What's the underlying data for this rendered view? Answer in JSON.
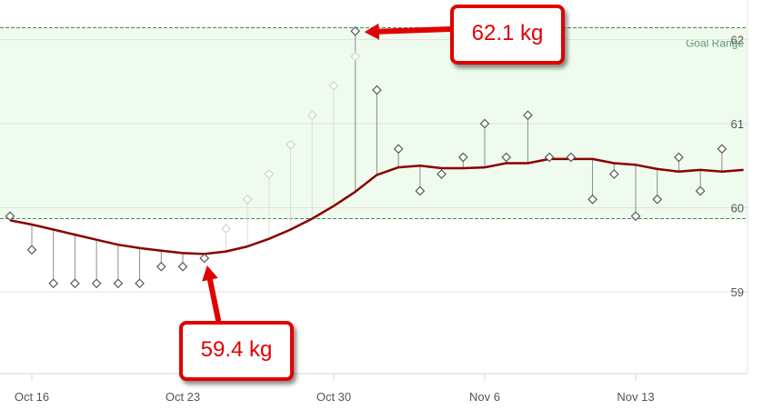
{
  "chart_data": {
    "type": "line",
    "goal_range": {
      "label": "Goal Range",
      "min": 59.87,
      "max": 62.14,
      "color": "#5a9a6e"
    },
    "y_ticks": [
      59,
      60,
      61,
      62
    ],
    "x_ticks": [
      {
        "label": "Oct 16",
        "day": 16
      },
      {
        "label": "Oct 23",
        "day": 23
      },
      {
        "label": "Oct 30",
        "day": 30
      },
      {
        "label": "Nov 6",
        "day": 37
      },
      {
        "label": "Nov 13",
        "day": 44
      }
    ],
    "measurements": [
      {
        "day": 16,
        "value": 59.5
      },
      {
        "day": 17,
        "value": 59.1
      },
      {
        "day": 18,
        "value": 59.1
      },
      {
        "day": 19,
        "value": 59.1
      },
      {
        "day": 20,
        "value": 59.1
      },
      {
        "day": 21,
        "value": 59.1
      },
      {
        "day": 22,
        "value": 59.3
      },
      {
        "day": 23,
        "value": 59.3
      },
      {
        "day": 24,
        "value": 59.4
      },
      {
        "day": 31,
        "value": 62.1
      },
      {
        "day": 32,
        "value": 61.4
      },
      {
        "day": 33,
        "value": 60.7
      },
      {
        "day": 34,
        "value": 60.2
      },
      {
        "day": 35,
        "value": 60.4
      },
      {
        "day": 36,
        "value": 60.6
      },
      {
        "day": 37,
        "value": 61.0
      },
      {
        "day": 38,
        "value": 60.6
      },
      {
        "day": 39,
        "value": 61.1
      },
      {
        "day": 40,
        "value": 60.6
      },
      {
        "day": 41,
        "value": 60.6
      },
      {
        "day": 42,
        "value": 60.1
      },
      {
        "day": 43,
        "value": 60.4
      },
      {
        "day": 44,
        "value": 59.9
      },
      {
        "day": 45,
        "value": 60.1
      },
      {
        "day": 46,
        "value": 60.6
      },
      {
        "day": 47,
        "value": 60.2
      },
      {
        "day": 48,
        "value": 60.7
      }
    ],
    "estimated_measurements": [
      {
        "day": 25,
        "value": 59.75
      },
      {
        "day": 26,
        "value": 60.1
      },
      {
        "day": 27,
        "value": 60.4
      },
      {
        "day": 28,
        "value": 60.75
      },
      {
        "day": 29,
        "value": 61.1
      },
      {
        "day": 30,
        "value": 61.45
      },
      {
        "day": 31,
        "value": 61.8
      }
    ],
    "trend": [
      {
        "day": 15,
        "value": 59.85
      },
      {
        "day": 16,
        "value": 59.8
      },
      {
        "day": 17,
        "value": 59.74
      },
      {
        "day": 18,
        "value": 59.68
      },
      {
        "day": 19,
        "value": 59.62
      },
      {
        "day": 20,
        "value": 59.56
      },
      {
        "day": 21,
        "value": 59.52
      },
      {
        "day": 22,
        "value": 59.49
      },
      {
        "day": 23,
        "value": 59.46
      },
      {
        "day": 24,
        "value": 59.45
      },
      {
        "day": 25,
        "value": 59.48
      },
      {
        "day": 26,
        "value": 59.54
      },
      {
        "day": 27,
        "value": 59.63
      },
      {
        "day": 28,
        "value": 59.74
      },
      {
        "day": 29,
        "value": 59.87
      },
      {
        "day": 30,
        "value": 60.02
      },
      {
        "day": 31,
        "value": 60.19
      },
      {
        "day": 32,
        "value": 60.39
      },
      {
        "day": 33,
        "value": 60.48
      },
      {
        "day": 34,
        "value": 60.5
      },
      {
        "day": 35,
        "value": 60.47
      },
      {
        "day": 36,
        "value": 60.47
      },
      {
        "day": 37,
        "value": 60.48
      },
      {
        "day": 38,
        "value": 60.53
      },
      {
        "day": 39,
        "value": 60.53
      },
      {
        "day": 40,
        "value": 60.58
      },
      {
        "day": 41,
        "value": 60.58
      },
      {
        "day": 42,
        "value": 60.58
      },
      {
        "day": 43,
        "value": 60.53
      },
      {
        "day": 44,
        "value": 60.51
      },
      {
        "day": 45,
        "value": 60.46
      },
      {
        "day": 46,
        "value": 60.43
      },
      {
        "day": 47,
        "value": 60.45
      },
      {
        "day": 48,
        "value": 60.43
      },
      {
        "day": 49,
        "value": 60.45
      }
    ],
    "annotations": [
      {
        "text": "62.1 kg",
        "day": 31,
        "value": 62.1
      },
      {
        "text": "59.4 kg",
        "day": 24,
        "value": 59.4
      }
    ],
    "colors": {
      "trend": "#8b0000",
      "annotation": "#e00000",
      "goal_fill": "#eefbee"
    }
  }
}
